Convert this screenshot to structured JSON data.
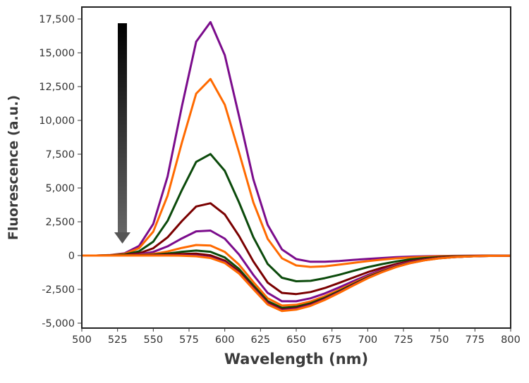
{
  "chart_data": {
    "type": "line",
    "title": "",
    "xlabel": "Wavelength (nm)",
    "ylabel": "Fluorescence (a.u.)",
    "xlim": [
      500,
      800
    ],
    "ylim": [
      -5000,
      17500
    ],
    "xticks": [
      "500",
      "525",
      "550",
      "575",
      "600",
      "625",
      "650",
      "675",
      "700",
      "725",
      "750",
      "775",
      "800"
    ],
    "xtick_values": [
      500,
      525,
      550,
      575,
      600,
      625,
      650,
      675,
      700,
      725,
      750,
      775,
      800
    ],
    "yticks": [
      "-5,000",
      "-2,500",
      "0",
      "2,500",
      "5,000",
      "7,500",
      "10,000",
      "12,500",
      "15,000",
      "17,500"
    ],
    "ytick_values": [
      -5000,
      -2500,
      0,
      2500,
      5000,
      7500,
      10000,
      12500,
      15000,
      17500
    ],
    "grid": false,
    "legend": "none",
    "annotation": "downward arrow indicating decreasing emission peak",
    "x": [
      500,
      510,
      520,
      530,
      540,
      550,
      560,
      570,
      580,
      590,
      600,
      610,
      620,
      630,
      640,
      650,
      660,
      670,
      680,
      690,
      700,
      710,
      720,
      730,
      740,
      750,
      760,
      770,
      780,
      790,
      800
    ],
    "series": [
      {
        "color": "#7b0c8c",
        "values": [
          0,
          0,
          40,
          170,
          710,
          2340,
          5850,
          11040,
          15820,
          17270,
          14830,
          10310,
          5640,
          2270,
          460,
          -260,
          -460,
          -460,
          -400,
          -320,
          -250,
          -180,
          -120,
          -80,
          -50,
          -30,
          -20,
          -10,
          0,
          0,
          0
        ]
      },
      {
        "color": "#ff6a00",
        "values": [
          0,
          0,
          30,
          130,
          540,
          1770,
          4430,
          8360,
          11980,
          13060,
          11160,
          7630,
          3940,
          1240,
          -200,
          -730,
          -840,
          -790,
          -670,
          -540,
          -410,
          -300,
          -210,
          -140,
          -90,
          -50,
          -30,
          -20,
          -10,
          0,
          0
        ]
      },
      {
        "color": "#0b4a0b",
        "values": [
          0,
          0,
          20,
          80,
          310,
          1030,
          2570,
          4850,
          6930,
          7510,
          6270,
          3930,
          1360,
          -620,
          -1640,
          -1900,
          -1870,
          -1670,
          -1420,
          -1130,
          -860,
          -630,
          -430,
          -280,
          -180,
          -110,
          -60,
          -30,
          -20,
          -10,
          0
        ]
      },
      {
        "color": "#7a0000",
        "values": [
          0,
          0,
          10,
          40,
          160,
          540,
          1350,
          2550,
          3630,
          3870,
          3040,
          1450,
          -430,
          -2000,
          -2760,
          -2850,
          -2700,
          -2400,
          -2020,
          -1620,
          -1230,
          -900,
          -620,
          -410,
          -260,
          -150,
          -90,
          -50,
          -20,
          -10,
          -10
        ]
      },
      {
        "color": "#7b0c8c",
        "values": [
          0,
          0,
          0,
          20,
          80,
          270,
          680,
          1270,
          1790,
          1850,
          1250,
          80,
          -1430,
          -2760,
          -3380,
          -3380,
          -3160,
          -2800,
          -2360,
          -1890,
          -1440,
          -1050,
          -720,
          -470,
          -300,
          -180,
          -100,
          -50,
          -30,
          -10,
          -10
        ]
      },
      {
        "color": "#ff6a00",
        "values": [
          0,
          0,
          0,
          10,
          40,
          120,
          300,
          570,
          780,
          740,
          270,
          -670,
          -1960,
          -3160,
          -3700,
          -3640,
          -3390,
          -3000,
          -2530,
          -2030,
          -1540,
          -1130,
          -770,
          -510,
          -320,
          -190,
          -110,
          -60,
          -30,
          -20,
          -10
        ]
      },
      {
        "color": "#0b4a0b",
        "values": [
          0,
          0,
          0,
          10,
          20,
          60,
          150,
          280,
          370,
          280,
          -140,
          -990,
          -2210,
          -3370,
          -3870,
          -3790,
          -3530,
          -3120,
          -2630,
          -2110,
          -1600,
          -1170,
          -800,
          -530,
          -330,
          -200,
          -110,
          -60,
          -30,
          -20,
          -10
        ]
      },
      {
        "color": "#7a0000",
        "values": [
          0,
          0,
          0,
          0,
          10,
          30,
          70,
          120,
          140,
          20,
          -370,
          -1180,
          -2360,
          -3500,
          -3990,
          -3900,
          -3620,
          -3200,
          -2700,
          -2160,
          -1640,
          -1200,
          -820,
          -540,
          -340,
          -200,
          -120,
          -60,
          -30,
          -20,
          -10
        ]
      },
      {
        "color": "#7b0c8c",
        "values": [
          0,
          0,
          0,
          0,
          0,
          10,
          20,
          20,
          0,
          -130,
          -500,
          -1290,
          -2440,
          -3560,
          -4050,
          -3950,
          -3670,
          -3240,
          -2730,
          -2190,
          -1660,
          -1220,
          -830,
          -550,
          -340,
          -200,
          -120,
          -60,
          -30,
          -20,
          -10
        ]
      },
      {
        "color": "#ff6a00",
        "values": [
          0,
          0,
          0,
          0,
          0,
          0,
          0,
          -10,
          -50,
          -180,
          -550,
          -1330,
          -2490,
          -3620,
          -4100,
          -4000,
          -3720,
          -3280,
          -2760,
          -2210,
          -1680,
          -1230,
          -850,
          -550,
          -350,
          -210,
          -120,
          -60,
          -30,
          -20,
          -10
        ]
      }
    ]
  }
}
